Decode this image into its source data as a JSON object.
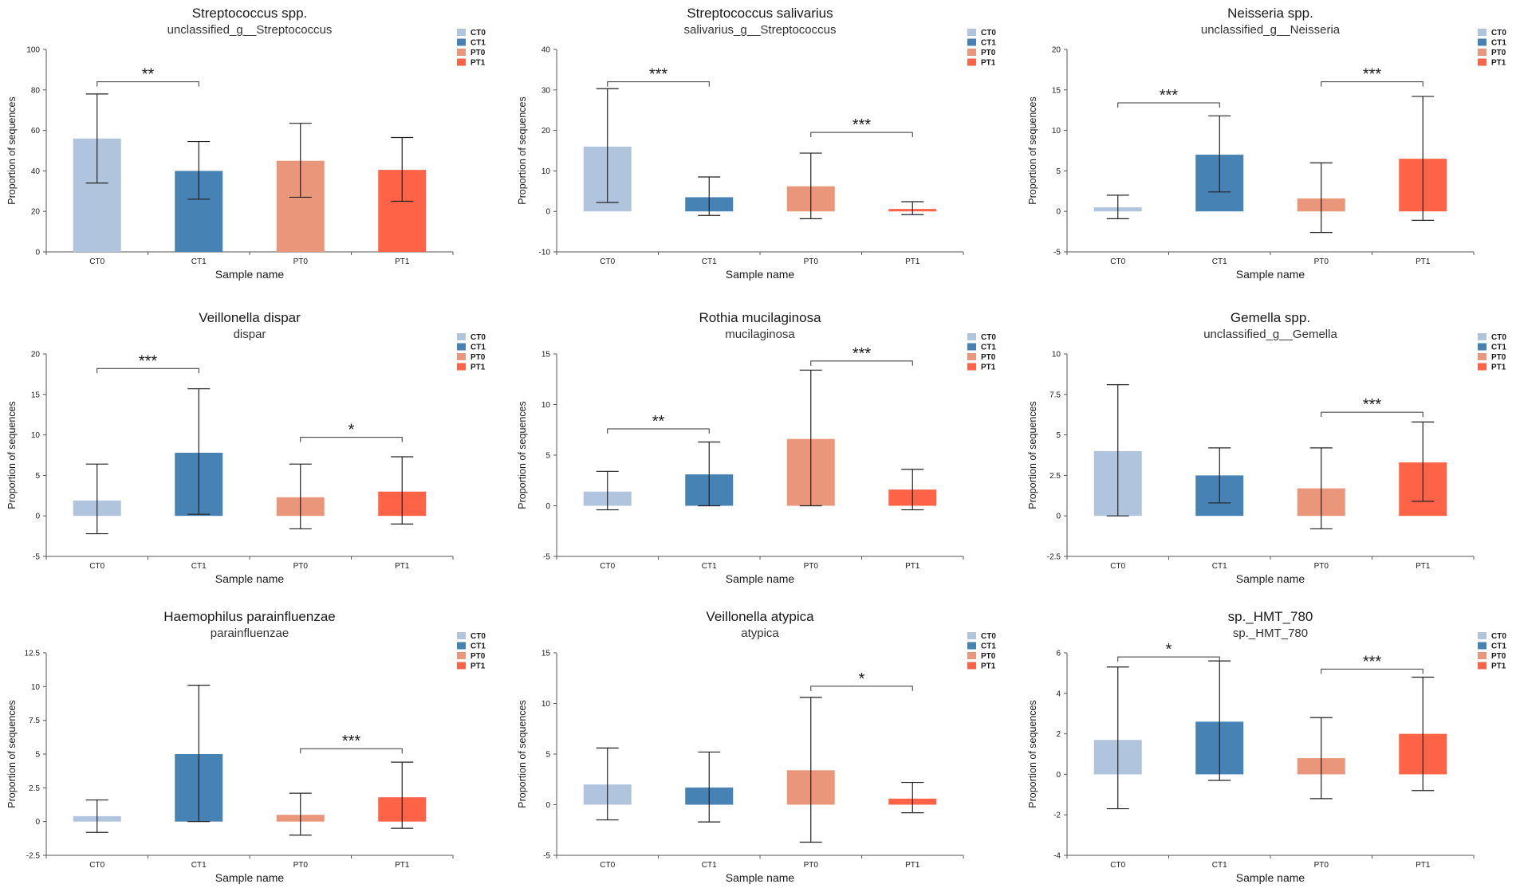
{
  "figure": {
    "legend": [
      "CT0",
      "CT1",
      "PT0",
      "PT1"
    ],
    "colors": {
      "CT0": "#b0c4de",
      "CT1": "#4682b4",
      "PT0": "#e9967a",
      "PT1": "#ff6347"
    }
  },
  "chart_data": [
    {
      "type": "bar",
      "title": "Streptococcus spp.",
      "subtitle": "unclassified_g__Streptococcus",
      "xlabel": "Sample name",
      "ylabel": "Proportion of sequences",
      "categories": [
        "CT0",
        "CT1",
        "PT0",
        "PT1"
      ],
      "values": [
        56,
        40,
        45,
        40.5
      ],
      "error_low": [
        34,
        26,
        27,
        25
      ],
      "error_high": [
        78,
        54.5,
        63.5,
        56.5
      ],
      "ylim": [
        0,
        100
      ],
      "yticks": [
        0,
        20,
        40,
        60,
        80,
        100
      ],
      "ytick_labels": [
        "0",
        "20",
        "40",
        "60",
        "80",
        "100"
      ],
      "significance": [
        {
          "from": 0,
          "to": 1,
          "label": "**",
          "y": 84
        }
      ]
    },
    {
      "type": "bar",
      "title": "Streptococcus salivarius",
      "subtitle": "salivarius_g__Streptococcus",
      "xlabel": "Sample name",
      "ylabel": "Proportion of sequences",
      "categories": [
        "CT0",
        "CT1",
        "PT0",
        "PT1"
      ],
      "values": [
        16,
        3.5,
        6.2,
        0.6
      ],
      "error_low": [
        2.2,
        -1,
        -1.8,
        -0.8
      ],
      "error_high": [
        30.3,
        8.5,
        14.4,
        2.4
      ],
      "ylim": [
        -10,
        40
      ],
      "yticks": [
        -10,
        0,
        10,
        20,
        30,
        40
      ],
      "ytick_labels": [
        "-10",
        "0",
        "10",
        "20",
        "30",
        "40"
      ],
      "significance": [
        {
          "from": 0,
          "to": 1,
          "label": "***",
          "y": 32
        },
        {
          "from": 2,
          "to": 3,
          "label": "***",
          "y": 19.5
        }
      ]
    },
    {
      "type": "bar",
      "title": "Neisseria spp.",
      "subtitle": "unclassified_g__Neisseria",
      "xlabel": "Sample name",
      "ylabel": "Proportion of sequences",
      "categories": [
        "CT0",
        "CT1",
        "PT0",
        "PT1"
      ],
      "values": [
        0.5,
        7,
        1.6,
        6.5
      ],
      "error_low": [
        -0.9,
        2.4,
        -2.6,
        -1.1
      ],
      "error_high": [
        2,
        11.8,
        6,
        14.2
      ],
      "ylim": [
        -5,
        20
      ],
      "yticks": [
        -5,
        0,
        5,
        10,
        15,
        20
      ],
      "ytick_labels": [
        "-5",
        "0",
        "5",
        "10",
        "15",
        "20"
      ],
      "significance": [
        {
          "from": 0,
          "to": 1,
          "label": "***",
          "y": 13.4
        },
        {
          "from": 2,
          "to": 3,
          "label": "***",
          "y": 16
        }
      ]
    },
    {
      "type": "bar",
      "title": "Veillonella dispar",
      "subtitle": "dispar",
      "xlabel": "Sample name",
      "ylabel": "Proportion of sequences",
      "categories": [
        "CT0",
        "CT1",
        "PT0",
        "PT1"
      ],
      "values": [
        1.9,
        7.8,
        2.3,
        3
      ],
      "error_low": [
        -2.2,
        0.2,
        -1.6,
        -1
      ],
      "error_high": [
        6.4,
        15.7,
        6.4,
        7.3
      ],
      "ylim": [
        -5,
        20
      ],
      "yticks": [
        -5,
        0,
        5,
        10,
        15,
        20
      ],
      "ytick_labels": [
        "-5",
        "0",
        "5",
        "10",
        "15",
        "20"
      ],
      "significance": [
        {
          "from": 0,
          "to": 1,
          "label": "***",
          "y": 18.2
        },
        {
          "from": 2,
          "to": 3,
          "label": "*",
          "y": 9.7
        }
      ]
    },
    {
      "type": "bar",
      "title": "Rothia mucilaginosa",
      "subtitle": "mucilaginosa",
      "xlabel": "Sample name",
      "ylabel": "Proportion of sequences",
      "categories": [
        "CT0",
        "CT1",
        "PT0",
        "PT1"
      ],
      "values": [
        1.4,
        3.1,
        6.6,
        1.6
      ],
      "error_low": [
        -0.4,
        0,
        0,
        -0.4
      ],
      "error_high": [
        3.4,
        6.3,
        13.4,
        3.6
      ],
      "ylim": [
        -5,
        15
      ],
      "yticks": [
        -5,
        0,
        5,
        10,
        15
      ],
      "ytick_labels": [
        "-5",
        "0",
        "5",
        "10",
        "15"
      ],
      "significance": [
        {
          "from": 0,
          "to": 1,
          "label": "**",
          "y": 7.6
        },
        {
          "from": 2,
          "to": 3,
          "label": "***",
          "y": 14.3
        }
      ]
    },
    {
      "type": "bar",
      "title": "Gemella spp.",
      "subtitle": "unclassified_g__Gemella",
      "xlabel": "Sample name",
      "ylabel": "Proportion of sequences",
      "categories": [
        "CT0",
        "CT1",
        "PT0",
        "PT1"
      ],
      "values": [
        4,
        2.5,
        1.7,
        3.3
      ],
      "error_low": [
        0,
        0.8,
        -0.8,
        0.9
      ],
      "error_high": [
        8.1,
        4.2,
        4.2,
        5.8
      ],
      "ylim": [
        -2.5,
        10
      ],
      "yticks": [
        -2.5,
        0,
        2.5,
        5,
        7.5,
        10
      ],
      "ytick_labels": [
        "-2.5",
        "0",
        "2.5",
        "5",
        "7.5",
        "10"
      ],
      "significance": [
        {
          "from": 2,
          "to": 3,
          "label": "***",
          "y": 6.4
        }
      ]
    },
    {
      "type": "bar",
      "title": "Haemophilus parainfluenzae",
      "subtitle": "parainfluenzae",
      "xlabel": "Sample name",
      "ylabel": "Proportion of sequences",
      "categories": [
        "CT0",
        "CT1",
        "PT0",
        "PT1"
      ],
      "values": [
        0.4,
        5,
        0.5,
        1.8
      ],
      "error_low": [
        -0.8,
        0,
        -1,
        -0.5
      ],
      "error_high": [
        1.6,
        10.1,
        2.1,
        4.4
      ],
      "ylim": [
        -2.5,
        12.5
      ],
      "yticks": [
        -2.5,
        0,
        2.5,
        5,
        7.5,
        10,
        12.5
      ],
      "ytick_labels": [
        "-2.5",
        "0",
        "2.5",
        "5",
        "7.5",
        "10",
        "12.5"
      ],
      "significance": [
        {
          "from": 2,
          "to": 3,
          "label": "***",
          "y": 5.4
        }
      ]
    },
    {
      "type": "bar",
      "title": "Veillonella atypica",
      "subtitle": "atypica",
      "xlabel": "Sample name",
      "ylabel": "Proportion of sequences",
      "categories": [
        "CT0",
        "CT1",
        "PT0",
        "PT1"
      ],
      "values": [
        2,
        1.7,
        3.4,
        0.6
      ],
      "error_low": [
        -1.5,
        -1.7,
        -3.7,
        -0.8
      ],
      "error_high": [
        5.6,
        5.2,
        10.6,
        2.2
      ],
      "ylim": [
        -5,
        15
      ],
      "yticks": [
        -5,
        0,
        5,
        10,
        15
      ],
      "ytick_labels": [
        "-5",
        "0",
        "5",
        "10",
        "15"
      ],
      "significance": [
        {
          "from": 2,
          "to": 3,
          "label": "*",
          "y": 11.7
        }
      ]
    },
    {
      "type": "bar",
      "title": "sp._HMT_780",
      "subtitle": "sp._HMT_780",
      "xlabel": "Sample name",
      "ylabel": "Proportion of sequences",
      "categories": [
        "CT0",
        "CT1",
        "PT0",
        "PT1"
      ],
      "values": [
        1.7,
        2.6,
        0.8,
        2
      ],
      "error_low": [
        -1.7,
        -0.3,
        -1.2,
        -0.8
      ],
      "error_high": [
        5.3,
        5.6,
        2.8,
        4.8
      ],
      "ylim": [
        -4,
        6
      ],
      "yticks": [
        -4,
        -2,
        0,
        2,
        4,
        6
      ],
      "ytick_labels": [
        "-4",
        "-2",
        "0",
        "2",
        "4",
        "6"
      ],
      "significance": [
        {
          "from": 0,
          "to": 1,
          "label": "*",
          "y": 5.8
        },
        {
          "from": 2,
          "to": 3,
          "label": "***",
          "y": 5.2
        }
      ]
    }
  ]
}
